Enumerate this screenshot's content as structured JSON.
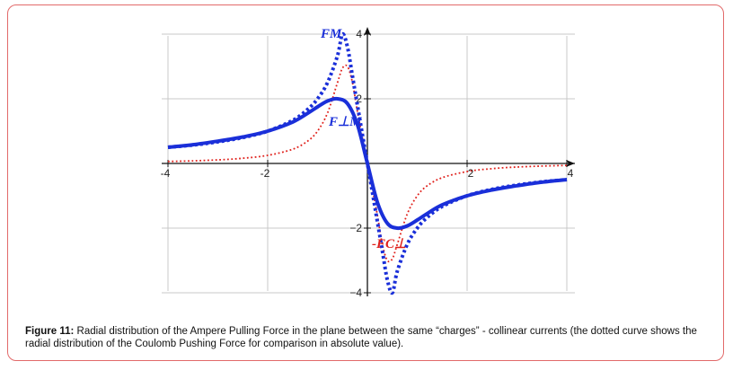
{
  "figure": {
    "caption_label": "Figure 11:",
    "caption_text": " Radial distribution of the Ampere Pulling Force in the plane between the same “charges” - collinear currents (the dotted curve shows the radial distribution of the Coulomb Pushing Force for comparison in absolute value)."
  },
  "chart_data": {
    "type": "line",
    "title": "",
    "xlabel": "",
    "ylabel": "",
    "xlim": [
      -4.1,
      4.1
    ],
    "ylim": [
      -4,
      4
    ],
    "x_ticks": [
      -4,
      -2,
      2,
      4
    ],
    "y_ticks": [
      -4,
      -2,
      2,
      4
    ],
    "x_tick_labels": [
      "-4",
      "-2",
      "2",
      "4"
    ],
    "y_tick_labels": [
      "−4",
      "−2",
      "2",
      "4"
    ],
    "grid": true,
    "series": [
      {
        "name": "F⊥M",
        "style": "solid",
        "color": "#1a2fd9",
        "x": [
          -4,
          -3.5,
          -3,
          -2.5,
          -2,
          -1.5,
          -1.2,
          -1,
          -0.8,
          -0.6,
          -0.4,
          -0.2,
          0,
          0.2,
          0.4,
          0.6,
          0.8,
          1,
          1.2,
          1.5,
          2,
          2.5,
          3,
          3.5,
          4
        ],
        "y": [
          0.5,
          0.58,
          0.69,
          0.82,
          1.0,
          1.28,
          1.55,
          1.75,
          1.93,
          2.0,
          1.85,
          1.2,
          0,
          -1.2,
          -1.85,
          -2.0,
          -1.93,
          -1.75,
          -1.55,
          -1.28,
          -1.0,
          -0.82,
          -0.69,
          -0.58,
          -0.5
        ]
      },
      {
        "name": "FM",
        "style": "dotted",
        "color": "#1a2fd9",
        "x": [
          -4,
          -3.5,
          -3,
          -2.5,
          -2,
          -1.5,
          -1.2,
          -1,
          -0.8,
          -0.6,
          -0.5,
          -0.4,
          -0.3,
          -0.2,
          -0.1,
          0,
          0.1,
          0.2,
          0.3,
          0.4,
          0.5,
          0.6,
          0.8,
          1,
          1.2,
          1.5,
          2,
          2.5,
          3,
          3.5,
          4
        ],
        "y": [
          0.5,
          0.57,
          0.67,
          0.8,
          1.0,
          1.33,
          1.67,
          2.0,
          2.5,
          3.33,
          4.0,
          3.6,
          2.7,
          1.8,
          0.9,
          0,
          -0.9,
          -1.8,
          -2.7,
          -3.6,
          -4.0,
          -3.33,
          -2.5,
          -2.0,
          -1.67,
          -1.33,
          -1.0,
          -0.8,
          -0.67,
          -0.57,
          -0.5
        ]
      },
      {
        "name": "FC",
        "style": "dotted",
        "color": "#e0201b",
        "x": [
          -4,
          -3.5,
          -3,
          -2.5,
          -2,
          -1.5,
          -1.2,
          -1,
          -0.8,
          -0.6,
          -0.5,
          -0.4,
          -0.3,
          -0.2,
          -0.1,
          0,
          0.1,
          0.2,
          0.3,
          0.4,
          0.5,
          0.6,
          0.8,
          1,
          1.2,
          1.5,
          2,
          2.5,
          3,
          3.5,
          4
        ],
        "y": [
          0.06,
          0.08,
          0.11,
          0.16,
          0.25,
          0.44,
          0.69,
          1.0,
          1.56,
          2.5,
          2.95,
          3.0,
          2.5,
          1.6,
          0.8,
          0,
          -0.8,
          -1.6,
          -2.5,
          -3.0,
          -2.95,
          -2.5,
          -1.56,
          -1.0,
          -0.69,
          -0.44,
          -0.25,
          -0.16,
          -0.11,
          -0.08,
          -0.06
        ]
      }
    ],
    "annotations": [
      {
        "text": "FM",
        "color": "#1a2fd9",
        "near_series": "FM"
      },
      {
        "text": "F⊥M",
        "color": "#1a2fd9",
        "near_series": "F⊥M"
      },
      {
        "text": "-FC⊥",
        "color": "#e0201b",
        "near_series": "FC"
      }
    ]
  }
}
